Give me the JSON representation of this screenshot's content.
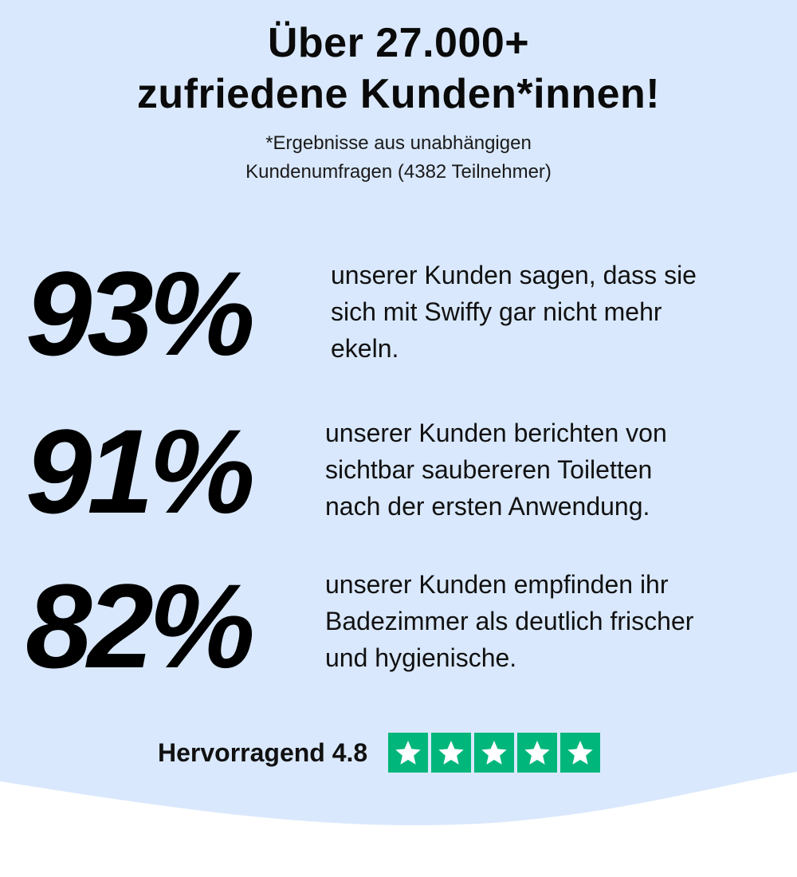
{
  "header": {
    "headline_line1": "Über 27.000+",
    "headline_line2": "zufriedene Kunden*innen!",
    "sub_line1": "*Ergebnisse aus unabhängigen",
    "sub_line2": "Kundenumfragen (4382 Teilnehmer)"
  },
  "stats": [
    {
      "value": "93%",
      "line1": "unserer Kunden sagen, dass sie",
      "line2": "sich mit Swiffy gar nicht mehr",
      "line3": "ekeln."
    },
    {
      "value": "91%",
      "line1": "unserer Kunden berichten von",
      "line2": "sichtbar saubereren Toiletten",
      "line3": "nach der ersten Anwendung."
    },
    {
      "value": "82%",
      "line1": "unserer Kunden empfinden ihr",
      "line2": "Badezimmer als deutlich frischer",
      "line3": "und hygienische."
    }
  ],
  "rating": {
    "label": "Hervorragend 4.8",
    "stars": 5,
    "star_color": "#00b67a"
  },
  "colors": {
    "background": "#d9e8fc",
    "wave": "#ffffff",
    "text": "#0a0a0a"
  }
}
